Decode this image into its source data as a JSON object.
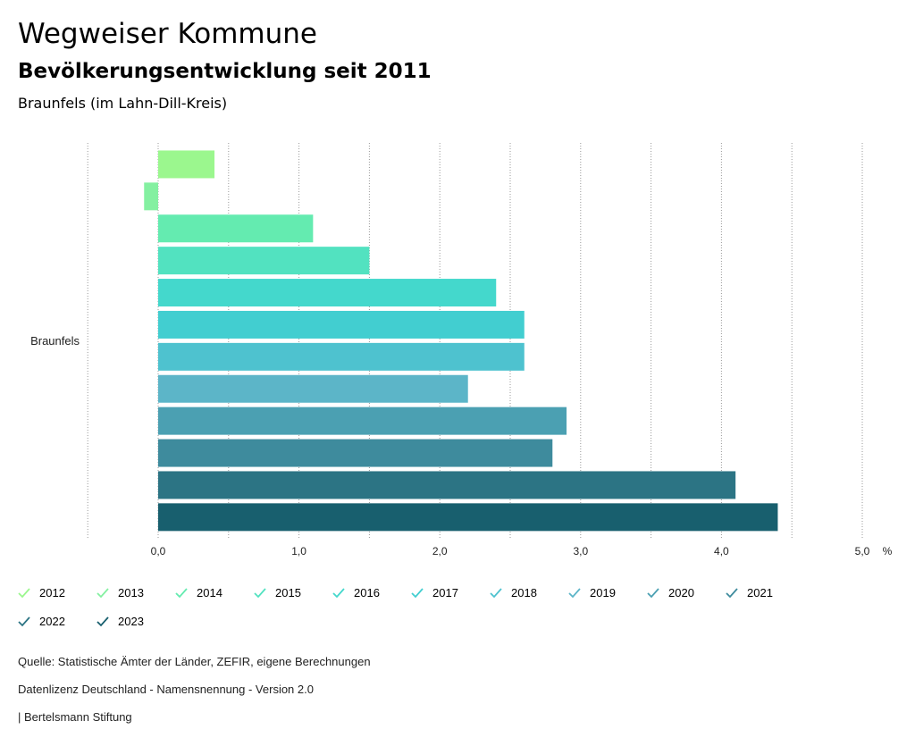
{
  "header": {
    "title": "Wegweiser Kommune",
    "subtitle": "Bevölkerungsentwicklung seit 2011",
    "region": "Braunfels (im Lahn-Dill-Kreis)"
  },
  "chart_data": {
    "type": "bar",
    "orientation": "horizontal",
    "category": "Braunfels",
    "unit": "%",
    "xlim": [
      -0.5,
      5.0
    ],
    "ticks": [
      "0,0",
      "1,0",
      "2,0",
      "3,0",
      "4,0",
      "5,0"
    ],
    "tick_values": [
      0,
      1,
      2,
      3,
      4,
      5
    ],
    "series": [
      {
        "name": "2012",
        "value": 0.4,
        "color": "#9bf78e"
      },
      {
        "name": "2013",
        "value": -0.1,
        "color": "#84f0a1"
      },
      {
        "name": "2014",
        "value": 1.1,
        "color": "#64ebb0"
      },
      {
        "name": "2015",
        "value": 1.5,
        "color": "#52e2c0"
      },
      {
        "name": "2016",
        "value": 2.4,
        "color": "#44d8cc"
      },
      {
        "name": "2017",
        "value": 2.6,
        "color": "#42ced0"
      },
      {
        "name": "2018",
        "value": 2.6,
        "color": "#4ec2cf"
      },
      {
        "name": "2019",
        "value": 2.2,
        "color": "#5cb5c8"
      },
      {
        "name": "2020",
        "value": 2.9,
        "color": "#4ba0b2"
      },
      {
        "name": "2021",
        "value": 2.8,
        "color": "#3e8b9d"
      },
      {
        "name": "2022",
        "value": 4.1,
        "color": "#2c7484"
      },
      {
        "name": "2023",
        "value": 4.4,
        "color": "#185f6e"
      }
    ]
  },
  "footer": {
    "source": "Quelle: Statistische Ämter der Länder, ZEFIR, eigene Berechnungen",
    "license": "Datenlizenz Deutschland - Namensnennung - Version 2.0",
    "publisher": "| Bertelsmann Stiftung"
  }
}
